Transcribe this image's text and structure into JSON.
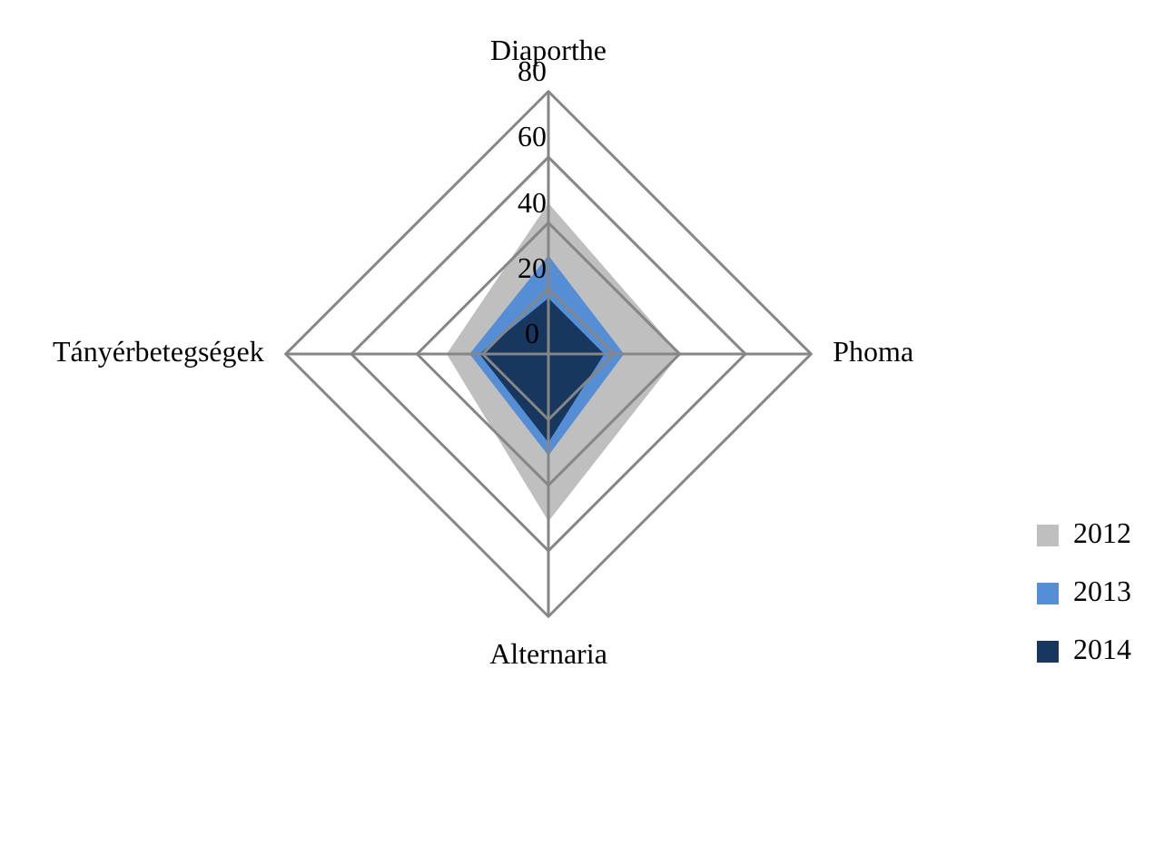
{
  "chart_data": {
    "type": "radar",
    "categories": [
      "Diaporthe",
      "Phoma",
      "Alternaria",
      "Tányérbetegségek"
    ],
    "series": [
      {
        "name": "2012",
        "color": "#bfbfbf",
        "values": [
          46,
          40,
          51,
          31
        ]
      },
      {
        "name": "2013",
        "color": "#558ed5",
        "values": [
          30,
          23,
          31,
          24
        ]
      },
      {
        "name": "2014",
        "color": "#17375e",
        "values": [
          17,
          17,
          27,
          21
        ]
      }
    ],
    "ylim": [
      0,
      80
    ],
    "yticks": [
      0,
      20,
      40,
      60,
      80
    ],
    "grid": true,
    "legend": "bottom right"
  }
}
